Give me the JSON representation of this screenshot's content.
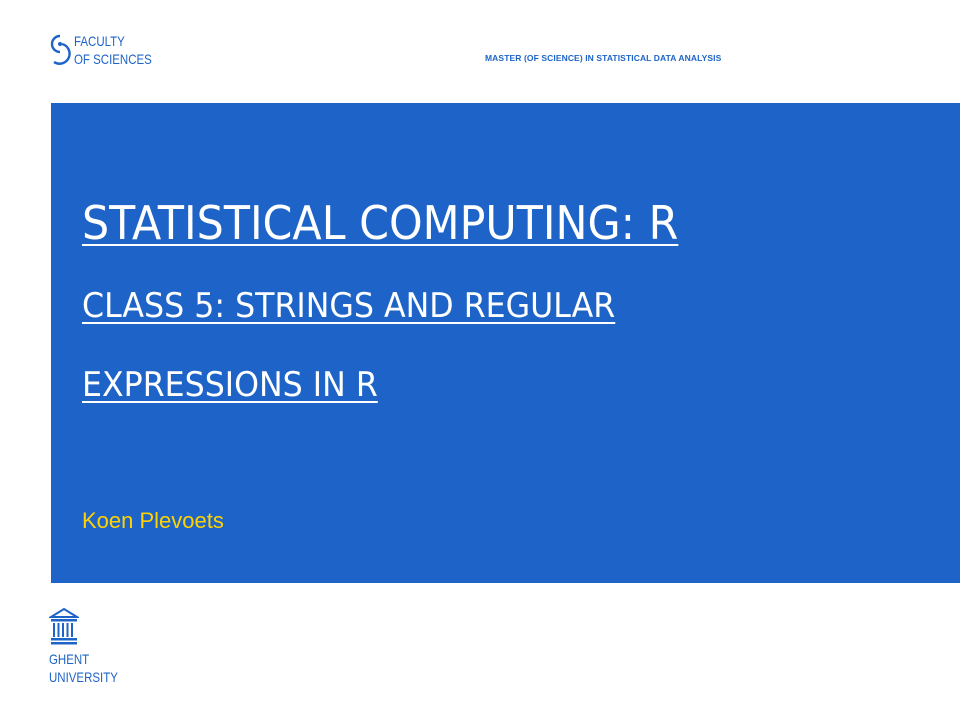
{
  "header": {
    "faculty_line1": "FACULTY",
    "faculty_line2": "OF SCIENCES",
    "program": "MASTER (OF SCIENCE) IN STATISTICAL DATA ANALYSIS"
  },
  "title_panel": {
    "title": "STATISTICAL COMPUTING: R",
    "subtitle_line1": "CLASS 5: STRINGS AND REGULAR",
    "subtitle_line2": "EXPRESSIONS IN R",
    "author": "Koen Plevoets"
  },
  "footer": {
    "university_line1": "GHENT",
    "university_line2": "UNIVERSITY"
  },
  "colors": {
    "brand_blue": "#1e64c8",
    "author_yellow": "#ffd200",
    "title_white": "#ffffff"
  },
  "icons": {
    "faculty_logo": "faculty-of-sciences-logo-icon",
    "university_logo": "ghent-university-building-icon"
  }
}
